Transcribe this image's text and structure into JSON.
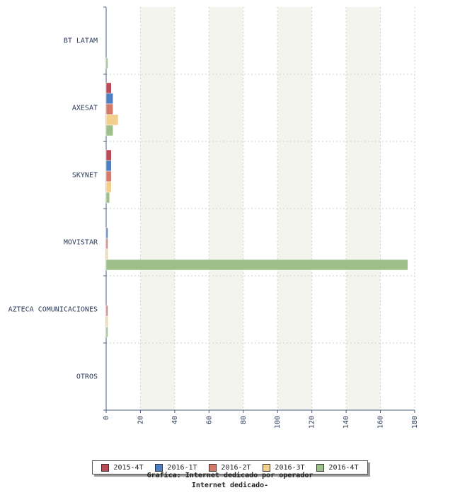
{
  "chart_data": {
    "type": "bar",
    "orientation": "horizontal",
    "categories": [
      "BT LATAM",
      "AXESAT",
      "SKYNET",
      "MOVISTAR",
      "AZTECA COMUNICACIONES",
      "OTROS"
    ],
    "series": [
      {
        "name": "2015-4T",
        "color": "#b94a57",
        "values": [
          0,
          3,
          3,
          0,
          0,
          0
        ]
      },
      {
        "name": "2016-1T",
        "color": "#4f7fc0",
        "values": [
          0,
          4,
          3,
          1,
          0,
          0
        ]
      },
      {
        "name": "2016-2T",
        "color": "#d47a6a",
        "values": [
          0,
          4,
          3,
          1,
          1,
          0
        ]
      },
      {
        "name": "2016-3T",
        "color": "#f2cf8d",
        "values": [
          0,
          7,
          3,
          1,
          1,
          0
        ]
      },
      {
        "name": "2016-4T",
        "color": "#9fbf8a",
        "values": [
          1,
          4,
          2,
          176,
          1,
          0
        ]
      }
    ],
    "xlim": [
      0,
      180
    ],
    "xticks": [
      "0",
      "20",
      "40",
      "60",
      "80",
      "100",
      "120",
      "140",
      "160",
      "180"
    ],
    "grid": true,
    "legend_position": "bottom",
    "captions": [
      "Grafica: Internet dedicado por operador",
      "Internet dedicado-"
    ]
  }
}
